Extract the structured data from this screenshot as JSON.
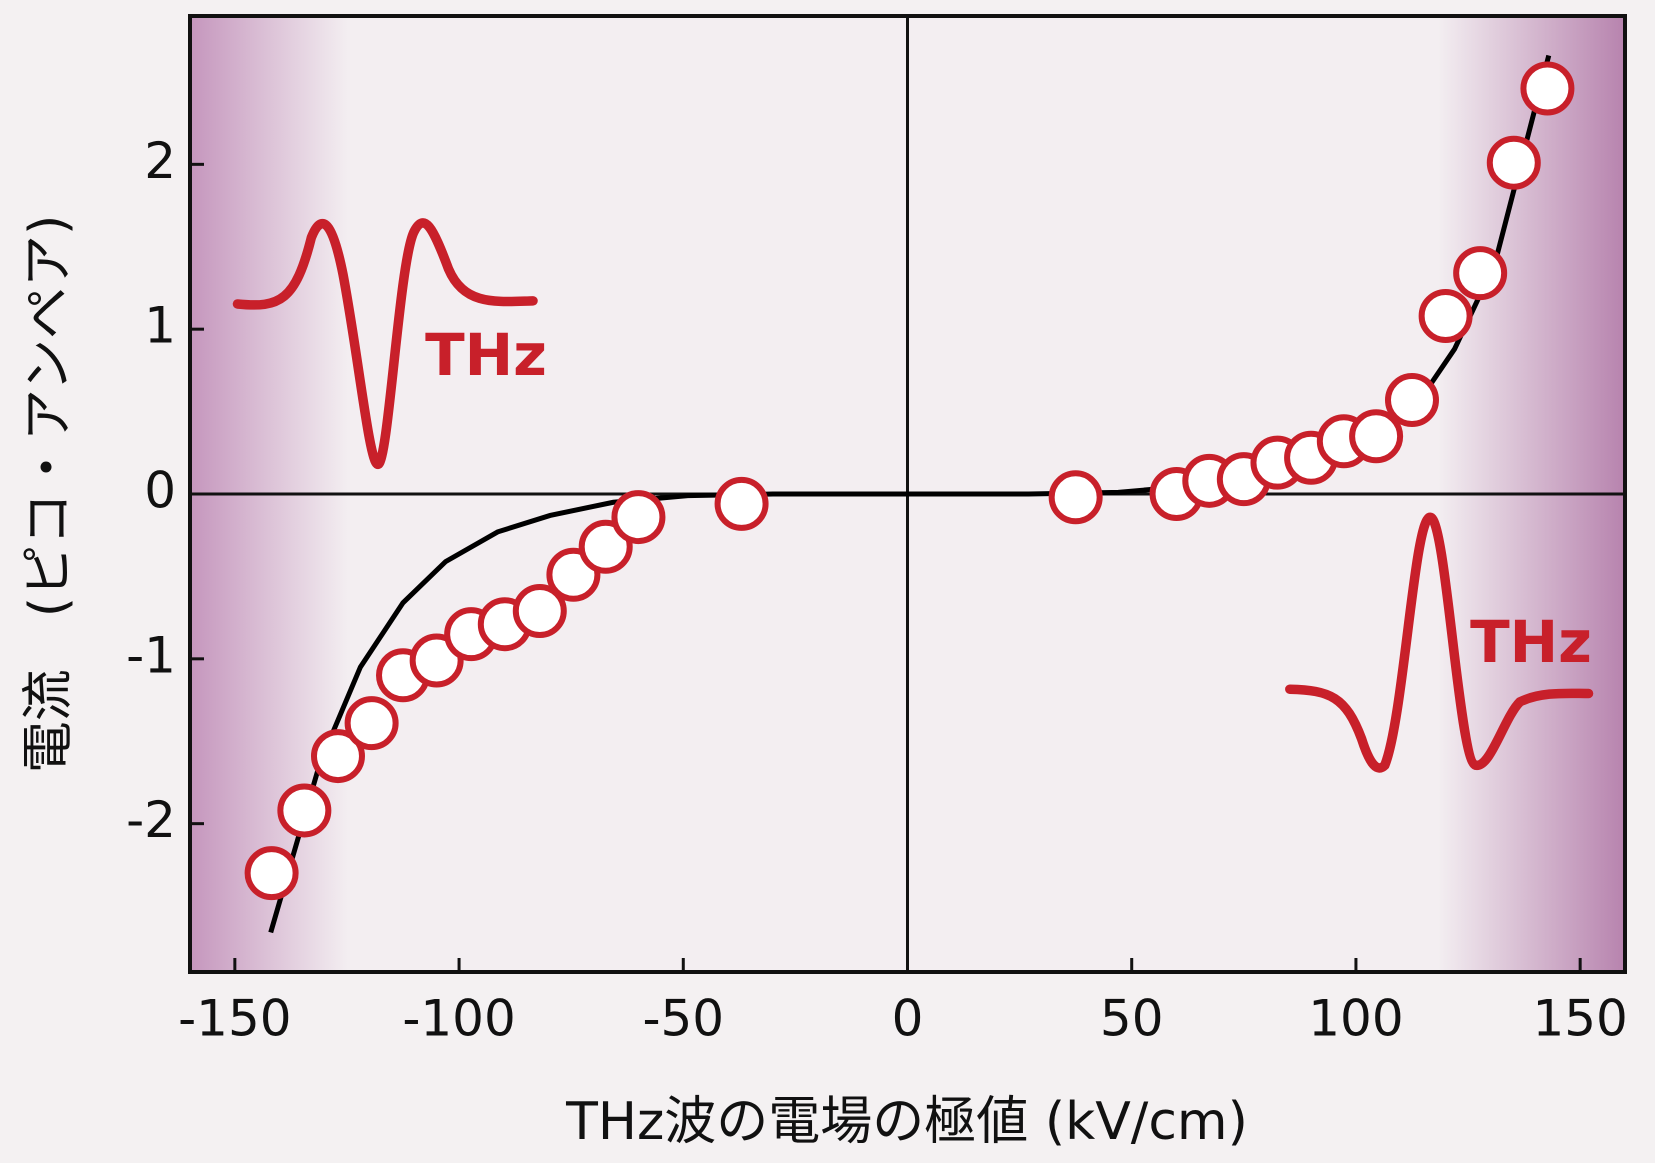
{
  "chart_data": {
    "type": "scatter",
    "xlabel": "THz波の電場の極値 (kV/cm)",
    "ylabel": "電流　(ピコ・アンペア)",
    "annotations": [
      "THz",
      "THz"
    ],
    "xlim": [
      -160,
      160
    ],
    "ylim": [
      -2.9,
      2.9
    ],
    "xticks": [
      -150,
      -100,
      -50,
      0,
      50,
      100,
      150
    ],
    "yticks": [
      -2,
      -1,
      0,
      1,
      2
    ],
    "series": [
      {
        "type": "scatter",
        "color": "#c8202a",
        "x": [
          -141.8,
          -134.5,
          -127,
          -119.5,
          -112.5,
          -105,
          -97.3,
          -89.8,
          -82,
          -74.5,
          -67.3,
          -60,
          -37,
          37.5,
          60,
          67.3,
          75,
          82.5,
          90,
          97.3,
          104.5,
          112.5,
          120,
          127.7,
          135.2,
          142.7
        ],
        "values": [
          -2.3,
          -1.92,
          -1.59,
          -1.39,
          -1.1,
          -1.01,
          -0.85,
          -0.79,
          -0.71,
          -0.49,
          -0.32,
          -0.14,
          -0.06,
          -0.02,
          0.0,
          0.08,
          0.09,
          0.19,
          0.22,
          0.32,
          0.35,
          0.57,
          1.08,
          1.34,
          2.01,
          2.46
        ]
      },
      {
        "type": "line",
        "color": "#000000",
        "x": [
          -142,
          -131,
          -122,
          -112.5,
          -103,
          -91.4,
          -79.7,
          -65.6,
          -49,
          -30,
          27,
          47,
          68,
          84,
          101,
          112.5,
          122,
          131,
          143
        ],
        "values": [
          -2.66,
          -1.63,
          -1.05,
          -0.66,
          -0.41,
          -0.23,
          -0.13,
          -0.05,
          -0.01,
          0,
          0,
          0.01,
          0.06,
          0.14,
          0.3,
          0.5,
          0.88,
          1.4,
          2.66
        ]
      }
    ]
  }
}
